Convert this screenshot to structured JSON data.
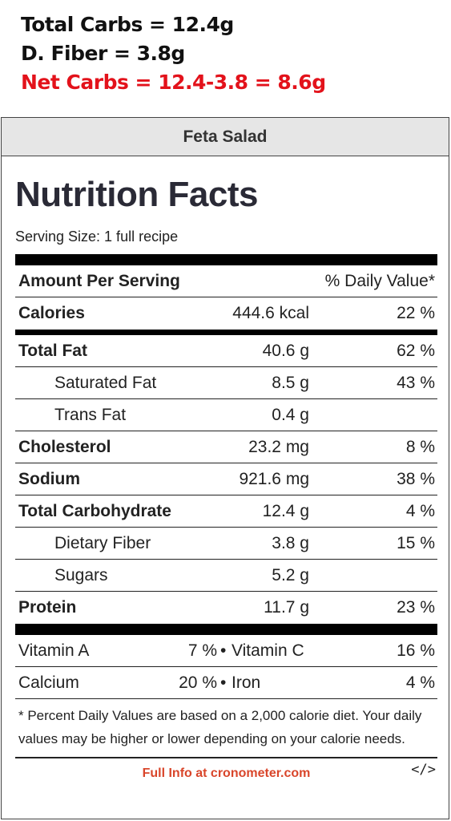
{
  "notes": {
    "total_carbs": "Total Carbs = 12.4g",
    "fiber": "D. Fiber = 3.8g",
    "net_carbs": "Net Carbs = 12.4-3.8 = 8.6g"
  },
  "panel": {
    "title": "Feta Salad",
    "heading": "Nutrition Facts",
    "serving_size": "Serving Size: 1 full recipe",
    "amount_per_serving": "Amount Per Serving",
    "daily_value_header": "% Daily Value*",
    "rows": [
      {
        "label": "Calories",
        "amount": "444.6 kcal",
        "dv": "22 %"
      },
      {
        "label": "Total Fat",
        "amount": "40.6 g",
        "dv": "62 %"
      },
      {
        "label": "Saturated Fat",
        "amount": "8.5 g",
        "dv": "43 %"
      },
      {
        "label": "Trans Fat",
        "amount": "0.4 g",
        "dv": ""
      },
      {
        "label": "Cholesterol",
        "amount": "23.2 mg",
        "dv": "8 %"
      },
      {
        "label": "Sodium",
        "amount": "921.6 mg",
        "dv": "38 %"
      },
      {
        "label": "Total Carbohydrate",
        "amount": "12.4 g",
        "dv": "4 %"
      },
      {
        "label": "Dietary Fiber",
        "amount": "3.8 g",
        "dv": "15 %"
      },
      {
        "label": "Sugars",
        "amount": "5.2 g",
        "dv": ""
      },
      {
        "label": "Protein",
        "amount": "11.7 g",
        "dv": "23 %"
      }
    ],
    "vitamins": [
      {
        "left_label": "Vitamin A",
        "left_pct": "7 %",
        "bullet": "•",
        "right_label": "Vitamin C",
        "right_pct": "16 %"
      },
      {
        "left_label": "Calcium",
        "left_pct": "20 %",
        "bullet": "•",
        "right_label": "Iron",
        "right_pct": "4 %"
      }
    ],
    "footnote": "* Percent Daily Values are based on a 2,000 calorie diet. Your daily values may be higher or lower depending on your calorie needs.",
    "footer_link": "Full Info at cronometer.com",
    "embed_code": "</>"
  },
  "colors": {
    "net_carbs_red": "#e3121b",
    "link_orange": "#d9462b",
    "title_bg": "#e6e6e6"
  }
}
